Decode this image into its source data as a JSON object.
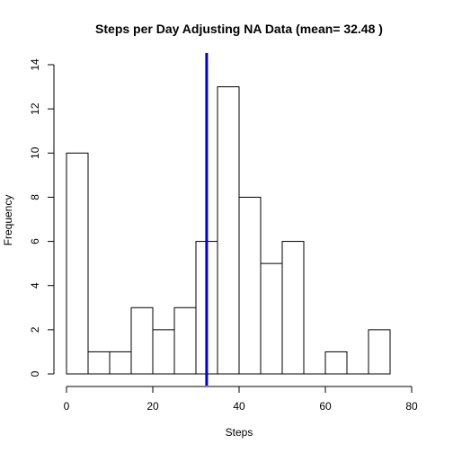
{
  "chart_data": {
    "type": "bar",
    "title": "Steps per Day Adjusting NA Data (mean= 32.48 )",
    "xlabel": "Steps",
    "ylabel": "Frequency",
    "bin_width": 5,
    "bins": [
      {
        "start": 0,
        "end": 5,
        "value": 10
      },
      {
        "start": 5,
        "end": 10,
        "value": 1
      },
      {
        "start": 10,
        "end": 15,
        "value": 1
      },
      {
        "start": 15,
        "end": 20,
        "value": 3
      },
      {
        "start": 20,
        "end": 25,
        "value": 2
      },
      {
        "start": 25,
        "end": 30,
        "value": 3
      },
      {
        "start": 30,
        "end": 35,
        "value": 6
      },
      {
        "start": 35,
        "end": 40,
        "value": 13
      },
      {
        "start": 40,
        "end": 45,
        "value": 8
      },
      {
        "start": 45,
        "end": 50,
        "value": 5
      },
      {
        "start": 50,
        "end": 55,
        "value": 6
      },
      {
        "start": 55,
        "end": 60,
        "value": 0
      },
      {
        "start": 60,
        "end": 65,
        "value": 1
      },
      {
        "start": 65,
        "end": 70,
        "value": 0
      },
      {
        "start": 70,
        "end": 75,
        "value": 2
      }
    ],
    "mean_line": {
      "value": 32.48,
      "color": "#0000cd"
    },
    "xlim": [
      0,
      80
    ],
    "ylim": [
      0,
      14
    ],
    "x_ticks": [
      0,
      20,
      40,
      60,
      80
    ],
    "y_ticks": [
      0,
      2,
      4,
      6,
      8,
      10,
      12,
      14
    ],
    "grid": false,
    "colors": {
      "bar_fill": "#ffffff",
      "bar_stroke": "#000000",
      "mean_line": "#0000cd"
    }
  }
}
